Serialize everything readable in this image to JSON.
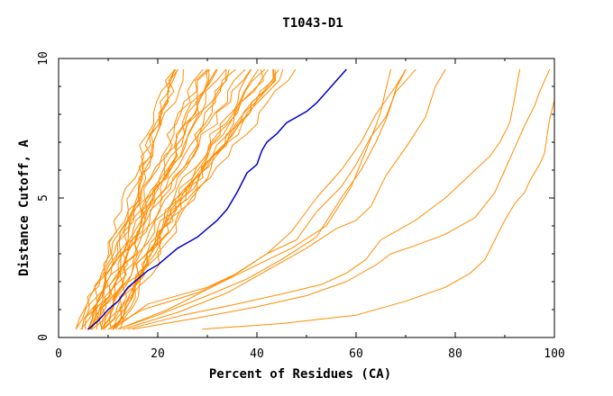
{
  "chart_data": {
    "type": "line",
    "title": "T1043-D1",
    "xlabel": "Percent of Residues (CA)",
    "ylabel": "Distance Cutoff, A",
    "xlim": [
      0,
      100
    ],
    "ylim": [
      0,
      10
    ],
    "xticks": [
      0,
      20,
      40,
      60,
      80,
      100
    ],
    "yticks": [
      0,
      5,
      10
    ],
    "grid": false,
    "colors": {
      "highlight": "#0000c8",
      "others": "#ff8c00"
    },
    "highlight_series": {
      "x": [
        6,
        8,
        10,
        12,
        14,
        16,
        18,
        20,
        22,
        24,
        26,
        28,
        30,
        32,
        34,
        36,
        38,
        40,
        41,
        42,
        44,
        46,
        48,
        50,
        52,
        54,
        56,
        58
      ],
      "y": [
        0.3,
        0.6,
        1.0,
        1.3,
        1.8,
        2.1,
        2.4,
        2.6,
        2.9,
        3.2,
        3.4,
        3.6,
        3.9,
        4.2,
        4.6,
        5.2,
        5.9,
        6.2,
        6.7,
        7.0,
        7.3,
        7.7,
        7.9,
        8.1,
        8.4,
        8.8,
        9.2,
        9.6
      ]
    },
    "band_series_count": 30,
    "outlier_series": [
      {
        "x": [
          11,
          18,
          30,
          36,
          42,
          47,
          52,
          57,
          61,
          64,
          66,
          68,
          69,
          70
        ],
        "y": [
          0.3,
          1.2,
          1.8,
          2.3,
          3.0,
          3.8,
          5.0,
          6.0,
          7.0,
          8.0,
          8.5,
          9.0,
          9.3,
          9.6
        ]
      },
      {
        "x": [
          10,
          17,
          28,
          35,
          42,
          48,
          52,
          57,
          60,
          63,
          66,
          68,
          70,
          72
        ],
        "y": [
          0.3,
          1.0,
          1.6,
          2.2,
          3.0,
          3.5,
          4.5,
          5.4,
          6.2,
          7.2,
          7.9,
          8.8,
          9.2,
          9.6
        ]
      },
      {
        "x": [
          12,
          20,
          30,
          38,
          45,
          52,
          57,
          61,
          64,
          66,
          67,
          68,
          70
        ],
        "y": [
          0.3,
          0.8,
          1.5,
          2.1,
          2.8,
          3.6,
          5.0,
          6.0,
          7.0,
          7.8,
          8.3,
          8.9,
          9.6
        ]
      },
      {
        "x": [
          12,
          22,
          32,
          40,
          47,
          54,
          59,
          62,
          64,
          65,
          66,
          67
        ],
        "y": [
          0.3,
          1.0,
          1.9,
          2.6,
          3.2,
          4.0,
          5.4,
          6.7,
          7.6,
          8.1,
          8.9,
          9.6
        ]
      },
      {
        "x": [
          13,
          24,
          34,
          42,
          50,
          56,
          60,
          63,
          66,
          70,
          74,
          76,
          78
        ],
        "y": [
          0.3,
          0.9,
          1.6,
          2.4,
          3.2,
          3.9,
          4.2,
          4.7,
          5.8,
          6.8,
          7.9,
          9.0,
          9.6
        ]
      },
      {
        "x": [
          14,
          25,
          36,
          46,
          53,
          58,
          62,
          65,
          67,
          69,
          72,
          75,
          78,
          81,
          84,
          87,
          89,
          91,
          92,
          93
        ],
        "y": [
          0.3,
          0.8,
          1.2,
          1.6,
          1.9,
          2.3,
          2.8,
          3.5,
          3.7,
          3.9,
          4.2,
          4.6,
          5.0,
          5.5,
          6.0,
          6.5,
          7.0,
          7.7,
          8.6,
          9.6
        ]
      },
      {
        "x": [
          15,
          28,
          40,
          50,
          58,
          64,
          67,
          72,
          78,
          84,
          88,
          90,
          92,
          94,
          96,
          97,
          98,
          99
        ],
        "y": [
          0.3,
          0.7,
          1.1,
          1.5,
          2.0,
          2.6,
          3.0,
          3.3,
          3.7,
          4.3,
          5.2,
          6.0,
          6.8,
          7.6,
          8.3,
          8.8,
          9.2,
          9.6
        ]
      },
      {
        "x": [
          29,
          45,
          60,
          70,
          78,
          83,
          86,
          88,
          90,
          92,
          94,
          95,
          97,
          98,
          99,
          100,
          100
        ],
        "y": [
          0.3,
          0.5,
          0.8,
          1.3,
          1.8,
          2.3,
          2.8,
          3.5,
          4.2,
          4.8,
          5.2,
          5.6,
          6.2,
          6.6,
          7.8,
          8.5,
          9.6
        ]
      }
    ]
  }
}
